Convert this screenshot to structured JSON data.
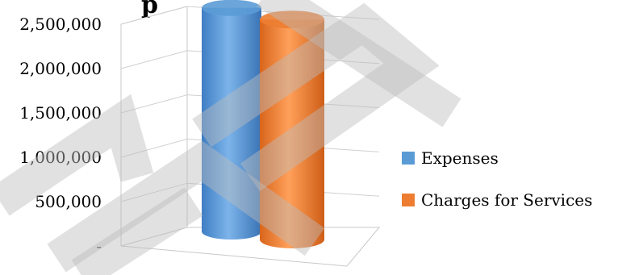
{
  "chart_data": {
    "type": "bar",
    "style": "3d-cylinder",
    "title": "",
    "categories": [
      ""
    ],
    "series": [
      {
        "name": "Expenses",
        "values": [
          2520000
        ],
        "color": "#5b9bd5"
      },
      {
        "name": "Charges for Services",
        "values": [
          2480000
        ],
        "color": "#ed7d31"
      }
    ],
    "ylim": [
      0,
      2500000
    ],
    "yticks": [
      {
        "value": 0,
        "label": "-"
      },
      {
        "value": 500000,
        "label": "500,000"
      },
      {
        "value": 1000000,
        "label": "1,000,000"
      },
      {
        "value": 1500000,
        "label": "1,500,000"
      },
      {
        "value": 2000000,
        "label": "2,000,000"
      },
      {
        "value": 2500000,
        "label": "2,500,000"
      }
    ],
    "grid": true,
    "legend_position": "right"
  },
  "watermark": {
    "visible": true,
    "color": "#bdbdbd"
  }
}
